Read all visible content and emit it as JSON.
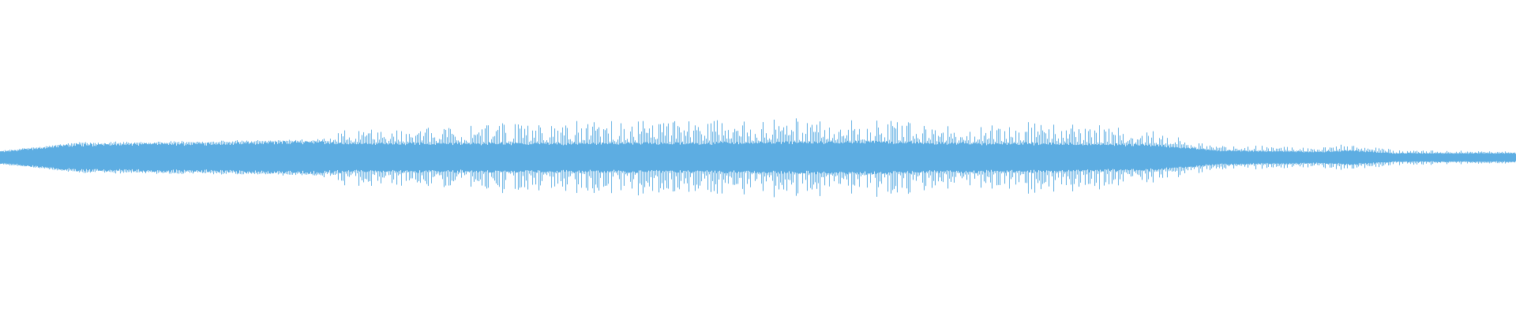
{
  "waveform": {
    "color": "#5dade2",
    "background": "#ffffff",
    "envelope": [
      {
        "t": 0.0,
        "body": 0.04,
        "peak": 0.045
      },
      {
        "t": 0.05,
        "body": 0.09,
        "peak": 0.1
      },
      {
        "t": 0.15,
        "body": 0.1,
        "peak": 0.11
      },
      {
        "t": 0.21,
        "body": 0.11,
        "peak": 0.12
      },
      {
        "t": 0.225,
        "body": 0.1,
        "peak": 0.18
      },
      {
        "t": 0.3,
        "body": 0.1,
        "peak": 0.2
      },
      {
        "t": 0.33,
        "body": 0.1,
        "peak": 0.24
      },
      {
        "t": 0.4,
        "body": 0.1,
        "peak": 0.25
      },
      {
        "t": 0.45,
        "body": 0.1,
        "peak": 0.24
      },
      {
        "t": 0.54,
        "body": 0.11,
        "peak": 0.27
      },
      {
        "t": 0.58,
        "body": 0.11,
        "peak": 0.26
      },
      {
        "t": 0.62,
        "body": 0.1,
        "peak": 0.21
      },
      {
        "t": 0.68,
        "body": 0.1,
        "peak": 0.24
      },
      {
        "t": 0.76,
        "body": 0.09,
        "peak": 0.18
      },
      {
        "t": 0.8,
        "body": 0.05,
        "peak": 0.08
      },
      {
        "t": 0.87,
        "body": 0.04,
        "peak": 0.07
      },
      {
        "t": 0.89,
        "body": 0.05,
        "peak": 0.09
      },
      {
        "t": 0.92,
        "body": 0.03,
        "peak": 0.05
      },
      {
        "t": 1.0,
        "body": 0.03,
        "peak": 0.04
      }
    ]
  }
}
